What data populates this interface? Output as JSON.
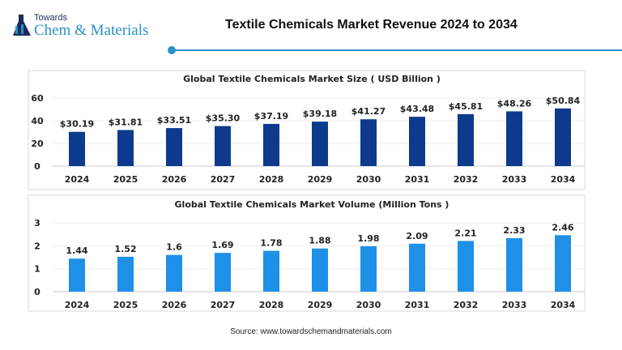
{
  "header": {
    "logo_top": "Towards",
    "logo_main": "Chem & Materials",
    "title": "Textile Chemicals Market Revenue 2024 to 2034",
    "accent": "#2a8fc8"
  },
  "source": "Source: www.towardschemandmaterials.com",
  "chart_data": [
    {
      "type": "bar",
      "title": "Global Textile Chemicals Market Size ( USD Billion )",
      "categories": [
        "2024",
        "2025",
        "2026",
        "2027",
        "2028",
        "2029",
        "2030",
        "2031",
        "2032",
        "2033",
        "2034"
      ],
      "values": [
        30.19,
        31.81,
        33.51,
        35.3,
        37.19,
        39.18,
        41.27,
        43.48,
        45.81,
        48.26,
        50.84
      ],
      "labels": [
        "$30.19",
        "$31.81",
        "$33.51",
        "$35.30",
        "$37.19",
        "$39.18",
        "$41.27",
        "$43.48",
        "$45.81",
        "$48.26",
        "$50.84"
      ],
      "ylim": [
        0,
        60
      ],
      "yticks": [
        "0",
        "20",
        "40",
        "60"
      ],
      "grid": true,
      "color": "#0d3a8c"
    },
    {
      "type": "bar",
      "title": "Global Textile Chemicals Market Volume (Million Tons )",
      "categories": [
        "2024",
        "2025",
        "2026",
        "2027",
        "2028",
        "2029",
        "2030",
        "2031",
        "2032",
        "2033",
        "2034"
      ],
      "values": [
        1.44,
        1.52,
        1.6,
        1.69,
        1.78,
        1.88,
        1.98,
        2.09,
        2.21,
        2.33,
        2.46
      ],
      "labels": [
        "1.44",
        "1.52",
        "1.6",
        "1.69",
        "1.78",
        "1.88",
        "1.98",
        "2.09",
        "2.21",
        "2.33",
        "2.46"
      ],
      "ylim": [
        0,
        3
      ],
      "yticks": [
        "0",
        "1",
        "2",
        "3"
      ],
      "grid": true,
      "color": "#1e90e8"
    }
  ]
}
